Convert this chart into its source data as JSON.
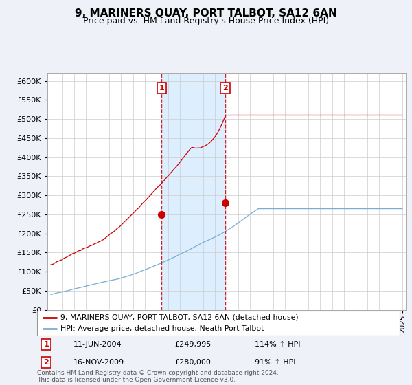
{
  "title": "9, MARINERS QUAY, PORT TALBOT, SA12 6AN",
  "subtitle": "Price paid vs. HM Land Registry's House Price Index (HPI)",
  "legend_line1": "9, MARINERS QUAY, PORT TALBOT, SA12 6AN (detached house)",
  "legend_line2": "HPI: Average price, detached house, Neath Port Talbot",
  "transaction1_date": "11-JUN-2004",
  "transaction1_price": "£249,995",
  "transaction1_hpi": "114% ↑ HPI",
  "transaction2_date": "16-NOV-2009",
  "transaction2_price": "£280,000",
  "transaction2_hpi": "91% ↑ HPI",
  "footer": "Contains HM Land Registry data © Crown copyright and database right 2024.\nThis data is licensed under the Open Government Licence v3.0.",
  "red_color": "#cc0000",
  "blue_color": "#7aadcf",
  "shade_color": "#ddeeff",
  "background_color": "#eef2f8",
  "plot_bg_color": "#ffffff",
  "grid_color": "#cccccc",
  "transaction1_year": 2004.44,
  "transaction2_year": 2009.88,
  "transaction1_price_val": 249995,
  "transaction2_price_val": 280000,
  "xlim_start": 1995,
  "xlim_end": 2025
}
